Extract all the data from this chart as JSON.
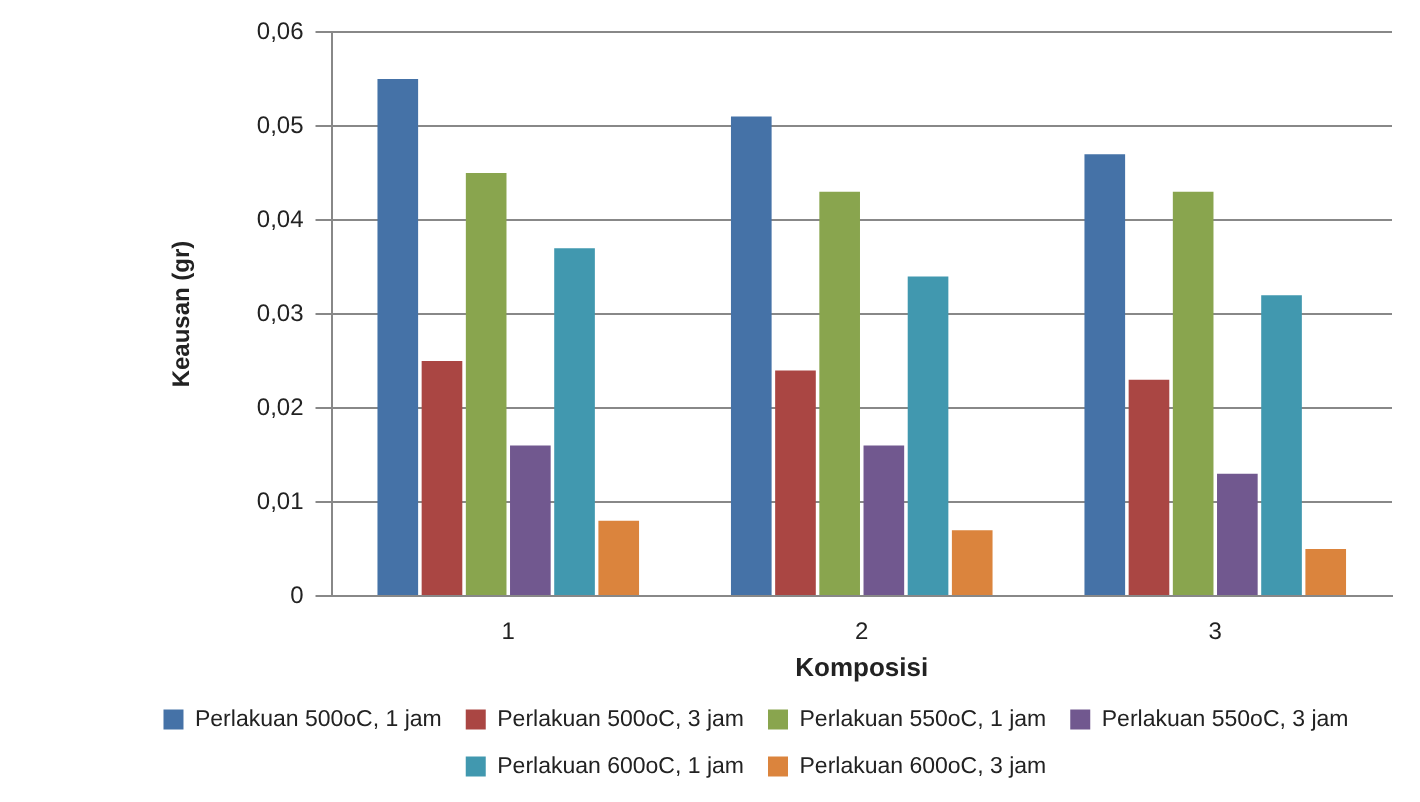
{
  "chart_data": {
    "type": "bar",
    "xlabel": "Komposisi",
    "ylabel": "Keausan (gr)",
    "categories": [
      "1",
      "2",
      "3"
    ],
    "series": [
      {
        "name": "Perlakuan 500oC, 1 jam",
        "color": "#4572a7",
        "values": [
          0.055,
          0.051,
          0.047
        ]
      },
      {
        "name": "Perlakuan 500oC, 3 jam",
        "color": "#aa4643",
        "values": [
          0.025,
          0.024,
          0.023
        ]
      },
      {
        "name": "Perlakuan 550oC, 1 jam",
        "color": "#89a54e",
        "values": [
          0.045,
          0.043,
          0.043
        ]
      },
      {
        "name": "Perlakuan 550oC, 3 jam",
        "color": "#71588f",
        "values": [
          0.016,
          0.016,
          0.013
        ]
      },
      {
        "name": "Perlakuan 600oC, 1 jam",
        "color": "#4198af",
        "values": [
          0.037,
          0.034,
          0.032
        ]
      },
      {
        "name": "Perlakuan 600oC, 3 jam",
        "color": "#db843d",
        "values": [
          0.008,
          0.007,
          0.005
        ]
      }
    ],
    "ylim": [
      0,
      0.06
    ],
    "yticks": [
      0,
      {
        "value": 0.01,
        "label": "0,01"
      },
      {
        "value": 0.02,
        "label": "0,02"
      },
      {
        "value": 0.03,
        "label": "0,03"
      },
      {
        "value": 0.04,
        "label": "0,04"
      },
      {
        "value": 0.05,
        "label": "0,05"
      },
      {
        "value": 0.06,
        "label": "0,06"
      }
    ],
    "grid": "y",
    "legend": "bottom"
  }
}
